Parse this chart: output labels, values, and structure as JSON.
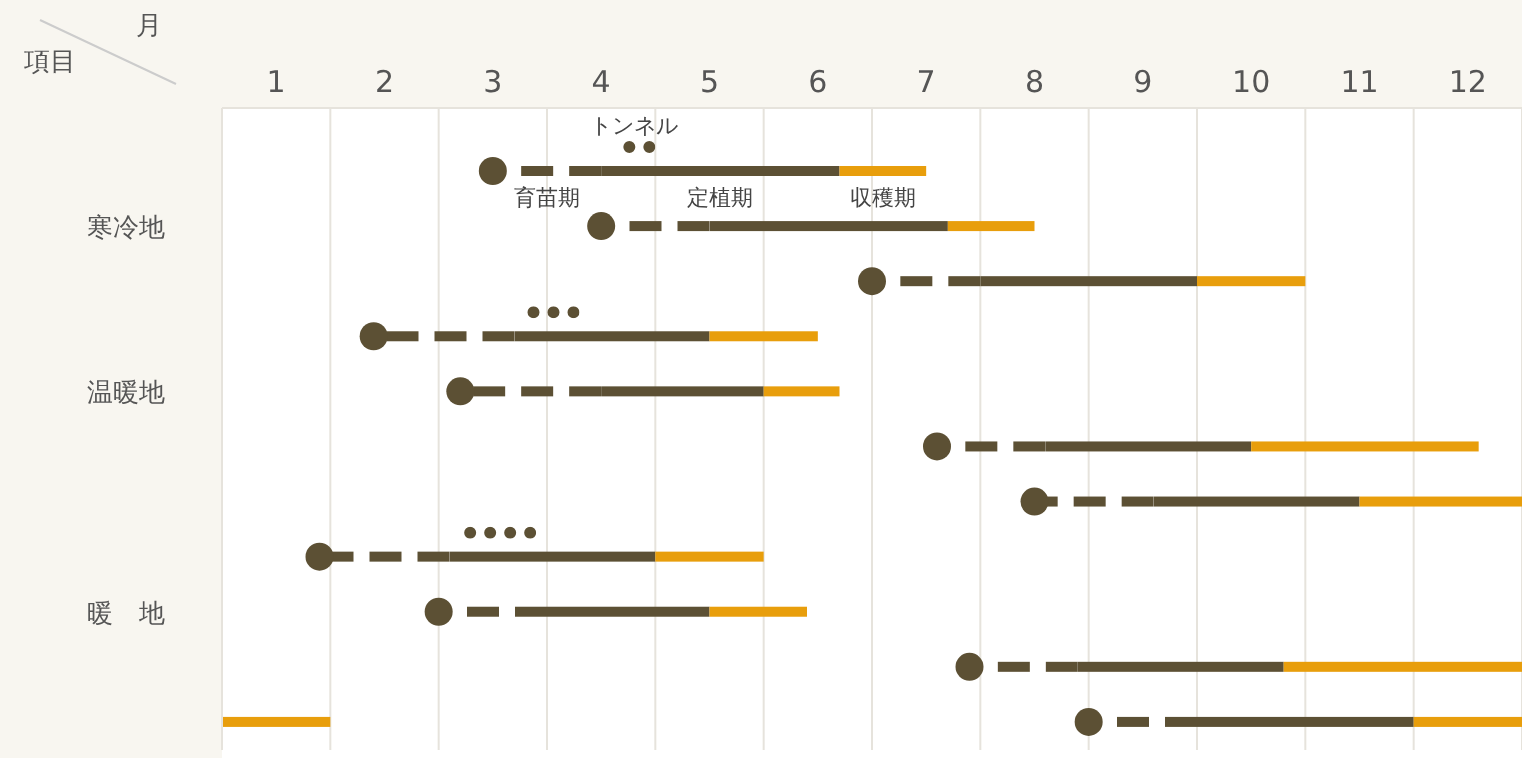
{
  "chart_data": {
    "type": "bar",
    "orientation": "horizontal",
    "xlabel": "月",
    "ylabel": "項目",
    "categories": [
      null,
      "寒冷地",
      null,
      null,
      "温暖地",
      null,
      null,
      null,
      "暖　地",
      null,
      null
    ],
    "xlim": [
      1,
      13
    ],
    "xticks": [
      {
        "value": 1,
        "label": null
      },
      {
        "value": 1.5,
        "label": "1"
      },
      {
        "value": 2,
        "label": null
      },
      {
        "value": 2.5,
        "label": "2"
      },
      {
        "value": 3,
        "label": null
      },
      {
        "value": 3.5,
        "label": "3"
      },
      {
        "value": 4,
        "label": null
      },
      {
        "value": 4.5,
        "label": "4"
      },
      {
        "value": 5,
        "label": null
      },
      {
        "value": 5.5,
        "label": "5"
      },
      {
        "value": 6,
        "label": null
      },
      {
        "value": 6.5,
        "label": "6"
      },
      {
        "value": 7,
        "label": null
      },
      {
        "value": 7.5,
        "label": "7"
      },
      {
        "value": 8,
        "label": null
      },
      {
        "value": 8.5,
        "label": "8"
      },
      {
        "value": 9,
        "label": null
      },
      {
        "value": 9.5,
        "label": "9"
      },
      {
        "value": 10,
        "label": null
      },
      {
        "value": 10.5,
        "label": "10"
      },
      {
        "value": 11,
        "label": null
      },
      {
        "value": 11.5,
        "label": "11"
      },
      {
        "value": 12,
        "label": null
      },
      {
        "value": 12.5,
        "label": "12"
      },
      {
        "value": 13,
        "label": null
      }
    ],
    "grid": "x",
    "series": [
      {
        "name": "育苗期",
        "color": "#5c5034",
        "line_style": "dashed",
        "marker": "circle",
        "base": [
          3.5,
          4.5,
          7,
          2.4,
          3.2,
          7.6,
          8.5,
          1.9,
          3,
          7.9,
          9
        ],
        "values": [
          1,
          1,
          1,
          1.3,
          1.3,
          1,
          1.1,
          1.2,
          1,
          1,
          1
        ]
      },
      {
        "name": "定植期",
        "color": "#5c5034",
        "line_style": "solid",
        "base": [
          4.5,
          5.5,
          8,
          3.7,
          4.5,
          8.6,
          9.6,
          3.1,
          4,
          8.9,
          10
        ],
        "values": [
          2.2,
          2.2,
          2,
          1.8,
          1.5,
          1.9,
          1.9,
          1.9,
          1.5,
          1.9,
          2
        ]
      },
      {
        "name": "収穫期",
        "color": "#e89e0c",
        "line_style": "solid",
        "base": [
          6.7,
          7.7,
          10,
          5.5,
          6,
          10.5,
          11.5,
          5,
          5.5,
          10.8,
          12
        ],
        "values": [
          0.8,
          0.8,
          1,
          1,
          0.7,
          2.1,
          1.5,
          1,
          0.9,
          2.2,
          1
        ]
      },
      {
        "color": "#e89e0c",
        "line_style": "solid",
        "base": [
          null,
          null,
          null,
          null,
          null,
          null,
          null,
          null,
          null,
          null,
          1
        ],
        "values": [
          null,
          null,
          null,
          null,
          null,
          null,
          null,
          null,
          null,
          null,
          1
        ]
      },
      {
        "name": "トンネル",
        "color": "#5c5034",
        "line_style": "dotted",
        "base": [
          4.6,
          null,
          null,
          3.7,
          null,
          null,
          null,
          3.1,
          null,
          null,
          null
        ],
        "values": [
          0.4,
          null,
          null,
          0.6,
          null,
          null,
          null,
          0.8,
          null,
          null,
          null
        ]
      }
    ]
  }
}
